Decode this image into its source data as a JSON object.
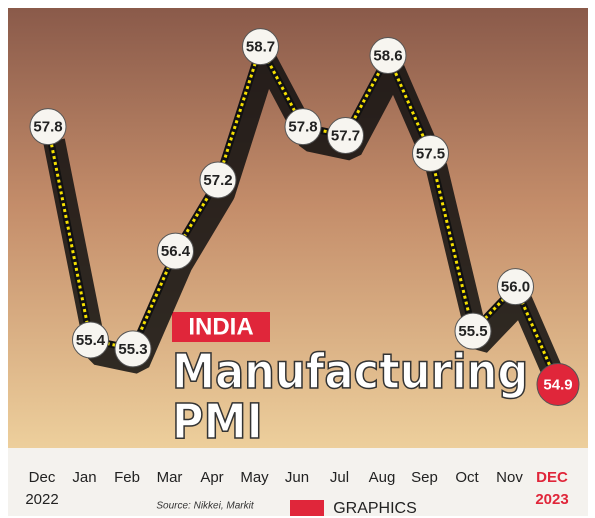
{
  "chart_data": {
    "type": "line",
    "kicker": "INDIA",
    "title": "Manufacturing PMI",
    "source": "Source: Nikkei, Markit",
    "credit": "GRAPHICS",
    "categories": [
      "Dec",
      "Jan",
      "Feb",
      "Mar",
      "Apr",
      "May",
      "Jun",
      "Jul",
      "Aug",
      "Sep",
      "Oct",
      "Nov",
      "DEC"
    ],
    "years": [
      "2022",
      "2023"
    ],
    "series": [
      {
        "color": "#f5e000",
        "values": [
          57.8,
          55.4,
          55.3,
          56.4,
          57.2,
          58.7,
          57.8,
          57.7,
          58.6,
          57.5,
          55.5,
          56.0,
          54.9
        ],
        "value_labels": [
          "57.8",
          "55.4",
          "55.3",
          "56.4",
          "57.2",
          "58.7",
          "57.8",
          "57.7",
          "58.6",
          "57.5",
          "55.5",
          "56.0",
          "54.9"
        ]
      }
    ],
    "ylim": [
      54.5,
      59
    ]
  }
}
